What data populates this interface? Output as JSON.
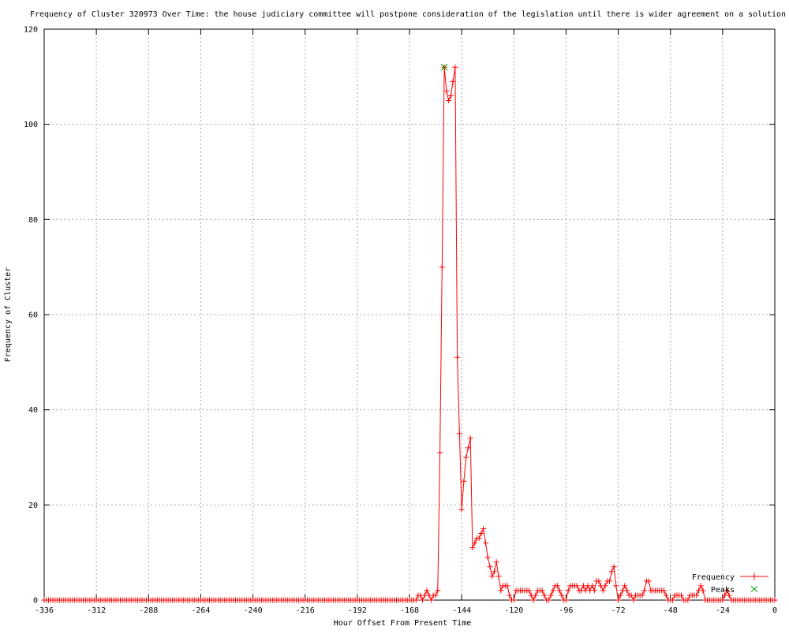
{
  "title": "Frequency of Cluster 320973 Over Time: the house judiciary committee will postpone consideration of the legislation until there is wider agreement on a solution",
  "x_axis": {
    "label": "Hour Offset From Present Time",
    "min": -336,
    "max": 0,
    "ticks": [
      -336,
      -312,
      -288,
      -264,
      -240,
      -216,
      -192,
      -168,
      -144,
      -120,
      -96,
      -72,
      -48,
      -24,
      0
    ]
  },
  "y_axis": {
    "label": "Frequency of Cluster",
    "min": 0,
    "max": 120,
    "ticks": [
      0,
      20,
      40,
      60,
      80,
      100,
      120
    ]
  },
  "colors": {
    "frequency_series": "#ff0000",
    "peaks_series": "#00a000",
    "grid": "#a8a8a8",
    "border": "#000000",
    "background": "#ffffff",
    "text": "#000000"
  },
  "legend": {
    "position": "inside-bottom-right",
    "items": [
      {
        "label": "Frequency",
        "marker": "plus",
        "color": "#ff0000",
        "has_line": true
      },
      {
        "label": "Peaks",
        "marker": "cross",
        "color": "#00a000",
        "has_line": false
      }
    ]
  },
  "chart_data": {
    "type": "line",
    "title": "Frequency of Cluster 320973 Over Time: the house judiciary committee will postpone consideration of the legislation until there is wider agreement on a solution",
    "xlabel": "Hour Offset From Present Time",
    "ylabel": "Frequency of Cluster",
    "xlim": [
      -336,
      0
    ],
    "ylim": [
      0,
      120
    ],
    "grid": true,
    "legend_position": "bottom-right-inside",
    "series": [
      {
        "name": "Frequency",
        "color": "#ff0000",
        "marker": "+",
        "start_x": -336,
        "step": 1,
        "values": [
          0,
          0,
          0,
          0,
          0,
          0,
          0,
          0,
          0,
          0,
          0,
          0,
          0,
          0,
          0,
          0,
          0,
          0,
          0,
          0,
          0,
          0,
          0,
          0,
          0,
          0,
          0,
          0,
          0,
          0,
          0,
          0,
          0,
          0,
          0,
          0,
          0,
          0,
          0,
          0,
          0,
          0,
          0,
          0,
          0,
          0,
          0,
          0,
          0,
          0,
          0,
          0,
          0,
          0,
          0,
          0,
          0,
          0,
          0,
          0,
          0,
          0,
          0,
          0,
          0,
          0,
          0,
          0,
          0,
          0,
          0,
          0,
          0,
          0,
          0,
          0,
          0,
          0,
          0,
          0,
          0,
          0,
          0,
          0,
          0,
          0,
          0,
          0,
          0,
          0,
          0,
          0,
          0,
          0,
          0,
          0,
          0,
          0,
          0,
          0,
          0,
          0,
          0,
          0,
          0,
          0,
          0,
          0,
          0,
          0,
          0,
          0,
          0,
          0,
          0,
          0,
          0,
          0,
          0,
          0,
          0,
          0,
          0,
          0,
          0,
          0,
          0,
          0,
          0,
          0,
          0,
          0,
          0,
          0,
          0,
          0,
          0,
          0,
          0,
          0,
          0,
          0,
          0,
          0,
          0,
          0,
          0,
          0,
          0,
          0,
          0,
          0,
          0,
          0,
          0,
          0,
          0,
          0,
          0,
          0,
          0,
          0,
          0,
          0,
          0,
          0,
          0,
          0,
          0,
          0,
          0,
          0,
          1,
          1,
          0,
          1,
          2,
          1,
          0,
          1,
          1,
          2,
          31,
          70,
          112,
          107,
          105,
          106,
          109,
          112,
          51,
          35,
          19,
          25,
          30,
          32,
          34,
          11,
          12,
          13,
          13,
          14,
          15,
          12,
          9,
          7,
          5,
          6,
          8,
          5,
          2,
          3,
          3,
          3,
          1,
          0,
          0,
          2,
          2,
          2,
          2,
          2,
          2,
          2,
          1,
          0,
          1,
          2,
          2,
          2,
          1,
          0,
          0,
          1,
          2,
          3,
          3,
          2,
          1,
          0,
          0,
          2,
          3,
          3,
          3,
          3,
          2,
          2,
          3,
          2,
          3,
          2,
          3,
          2,
          4,
          4,
          3,
          2,
          3,
          4,
          4,
          6,
          7,
          3,
          0,
          1,
          2,
          3,
          2,
          1,
          1,
          0,
          1,
          1,
          1,
          1,
          2,
          4,
          4,
          2,
          2,
          2,
          2,
          2,
          2,
          2,
          1,
          0,
          0,
          0,
          1,
          1,
          1,
          1,
          0,
          0,
          0,
          1,
          1,
          1,
          1,
          2,
          3,
          2,
          0,
          0,
          0,
          0,
          0,
          0,
          0,
          0,
          0,
          1,
          2,
          1,
          0,
          0,
          0,
          0,
          0,
          0,
          0,
          0,
          0,
          0,
          0,
          0,
          0,
          0,
          0,
          0,
          0,
          0,
          0,
          0,
          0
        ]
      },
      {
        "name": "Peaks",
        "color": "#00a000",
        "marker": "x",
        "points": [
          {
            "x": -152,
            "y": 112
          }
        ]
      }
    ]
  }
}
